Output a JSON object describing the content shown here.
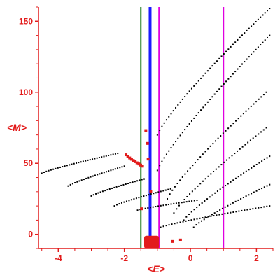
{
  "chart_data": {
    "type": "scatter",
    "xlabel": "<E>",
    "ylabel": "<M>",
    "xlim": [
      -4.6,
      2.5
    ],
    "ylim": [
      -10,
      160
    ],
    "x_ticks": [
      -4,
      -2,
      0,
      2
    ],
    "y_ticks": [
      0,
      50,
      100,
      150
    ],
    "x_tick_labels": [
      "-4",
      "-2",
      "0",
      "2"
    ],
    "y_tick_labels": [
      "0",
      "50",
      "100",
      "150"
    ],
    "colors": {
      "axis": "#e21b1b",
      "black_series": "#000000",
      "red_series": "#e21b1b",
      "green_line": "#1f7a1f",
      "blue_line": "#1a1aff",
      "magenta_line": "#e000e0"
    },
    "vertical_lines": [
      {
        "x": -1.5,
        "color": "green"
      },
      {
        "x": -1.22,
        "color": "blue"
      },
      {
        "x": -0.95,
        "color": "magenta"
      },
      {
        "x": 1.0,
        "color": "magenta"
      }
    ],
    "series": [
      {
        "color": "black",
        "curves": [
          {
            "x0": -4.5,
            "x1": -2.2,
            "y0": 43,
            "y1": 57,
            "n": 34
          },
          {
            "x0": -3.7,
            "x1": -2.0,
            "y0": 34,
            "y1": 48,
            "n": 26
          },
          {
            "x0": -3.0,
            "x1": -1.4,
            "y0": 27,
            "y1": 39,
            "n": 24
          },
          {
            "x0": -2.3,
            "x1": -0.6,
            "y0": 20,
            "y1": 32,
            "n": 24
          },
          {
            "x0": -1.6,
            "x1": 0.2,
            "y0": 17,
            "y1": 24,
            "n": 24
          },
          {
            "x0": -1.0,
            "x1": 2.4,
            "y0": 70,
            "y1": 159,
            "n": 50
          },
          {
            "x0": -1.0,
            "x1": 2.4,
            "y0": 45,
            "y1": 140,
            "n": 50
          },
          {
            "x0": -0.7,
            "x1": 2.3,
            "y0": 25,
            "y1": 100,
            "n": 40
          },
          {
            "x0": -0.5,
            "x1": 2.3,
            "y0": 15,
            "y1": 75,
            "n": 36
          },
          {
            "x0": -0.2,
            "x1": 2.4,
            "y0": 10,
            "y1": 55,
            "n": 34
          },
          {
            "x0": 0.1,
            "x1": 2.4,
            "y0": 5,
            "y1": 35,
            "n": 30
          },
          {
            "x0": -0.9,
            "x1": 2.4,
            "y0": 5,
            "y1": 20,
            "n": 40
          }
        ]
      },
      {
        "color": "red",
        "curves": [
          {
            "x0": -1.95,
            "x1": -1.45,
            "y0": 56,
            "y1": 48,
            "n": 10
          }
        ],
        "points": [
          {
            "x": -1.48,
            "y": 18
          },
          {
            "x": -1.35,
            "y": 73
          },
          {
            "x": -1.3,
            "y": 64
          },
          {
            "x": -1.28,
            "y": 53
          },
          {
            "x": -1.2,
            "y": 30
          },
          {
            "x": -0.55,
            "y": -5
          },
          {
            "x": -0.3,
            "y": -4
          }
        ],
        "blob": {
          "x0": -1.4,
          "x1": -0.95,
          "y0": -10,
          "y1": -1
        }
      }
    ]
  }
}
